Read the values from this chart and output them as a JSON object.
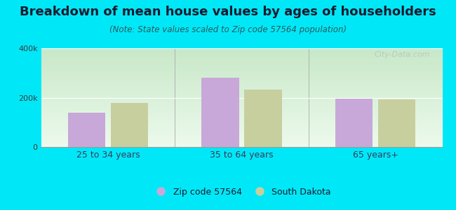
{
  "title": "Breakdown of mean house values by ages of householders",
  "subtitle": "(Note: State values scaled to Zip code 57564 population)",
  "categories": [
    "25 to 34 years",
    "35 to 64 years",
    "65 years+"
  ],
  "zip_values": [
    140000,
    280000,
    197000
  ],
  "state_values": [
    178000,
    232000,
    193000
  ],
  "ylim": [
    0,
    400000
  ],
  "yticks": [
    0,
    200000,
    400000
  ],
  "ytick_labels": [
    "0",
    "200k",
    "400k"
  ],
  "zip_color": "#c8a8d8",
  "state_color": "#c8cf9e",
  "bg_top_color": "#c8e8c8",
  "bg_bottom_color": "#edfaed",
  "outer_bg": "#00e8f8",
  "bar_width": 0.28,
  "legend_zip": "Zip code 57564",
  "legend_state": "South Dakota",
  "watermark": "City-Data.com",
  "title_fontsize": 13,
  "subtitle_fontsize": 8.5,
  "tick_fontsize": 8,
  "xlabel_fontsize": 9,
  "legend_fontsize": 9,
  "title_color": "#1a1a2e",
  "subtitle_color": "#2a5a5a",
  "tick_color": "#3a3a3a",
  "axis_label_color": "#3a3a5a"
}
